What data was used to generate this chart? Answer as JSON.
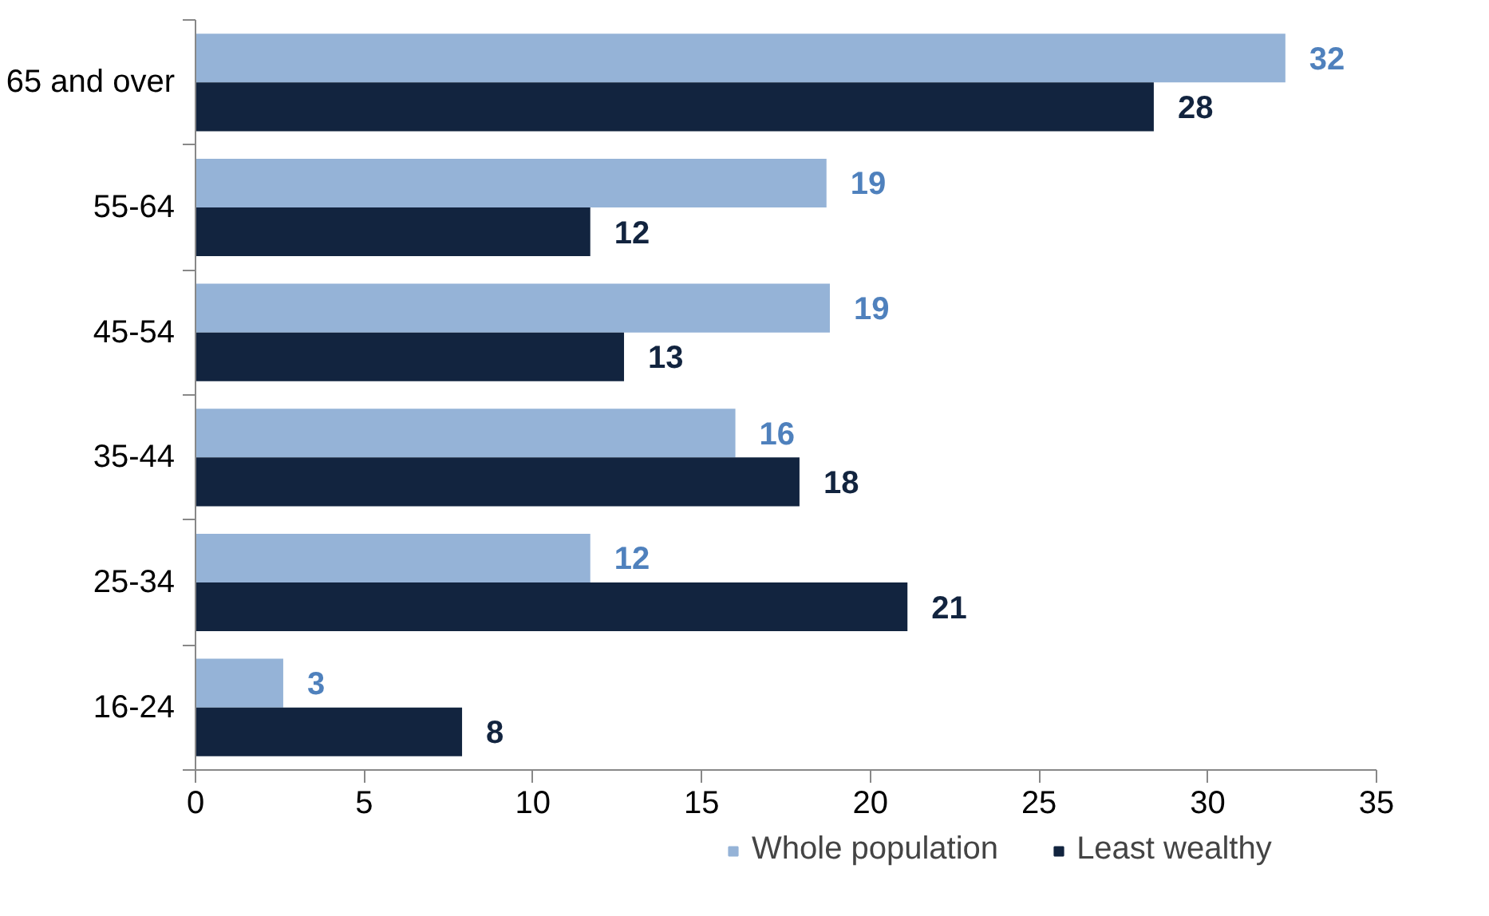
{
  "chart_data": {
    "type": "bar",
    "orientation": "horizontal",
    "categories": [
      "65 and over",
      "55-64",
      "45-54",
      "35-44",
      "25-34",
      "16-24"
    ],
    "series": [
      {
        "name": "Whole population",
        "color": "#95b3d7",
        "values": [
          32.3,
          18.7,
          18.8,
          16.0,
          11.7,
          2.6
        ],
        "value_labels": [
          "32",
          "19",
          "19",
          "16",
          "12",
          "3"
        ]
      },
      {
        "name": "Least wealthy",
        "color": "#12243f",
        "values": [
          28.4,
          11.7,
          12.7,
          17.9,
          21.1,
          7.9
        ],
        "value_labels": [
          "28",
          "12",
          "13",
          "18",
          "21",
          "8"
        ]
      }
    ],
    "xlim": [
      0,
      35
    ],
    "xticks": [
      0,
      5,
      10,
      15,
      20,
      25,
      30,
      35
    ],
    "grid": false,
    "legend": "bottom"
  }
}
